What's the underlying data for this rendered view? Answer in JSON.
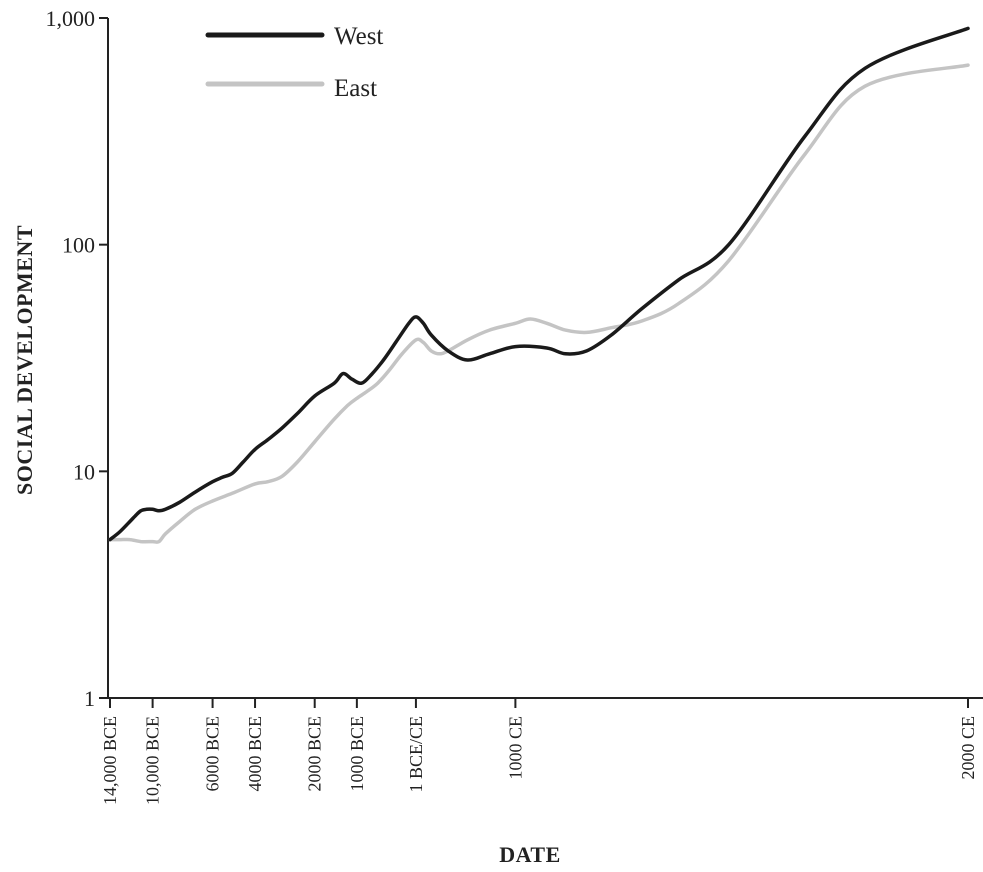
{
  "chart_data": {
    "type": "line",
    "title": "",
    "xlabel": "DATE",
    "ylabel": "SOCIAL DEVELOPMENT",
    "y_scale": "log",
    "ylim": [
      1,
      1000
    ],
    "y_ticks": [
      {
        "value": 1,
        "label": "1"
      },
      {
        "value": 10,
        "label": "10"
      },
      {
        "value": 100,
        "label": "100"
      },
      {
        "value": 1000,
        "label": "1,000"
      }
    ],
    "x_scale": "log of years before 2000 CE",
    "x_ticks": [
      {
        "year": -14000,
        "label": "14,000 BCE"
      },
      {
        "year": -10000,
        "label": "10,000 BCE"
      },
      {
        "year": -6000,
        "label": "6000 BCE"
      },
      {
        "year": -4000,
        "label": "4000 BCE"
      },
      {
        "year": -2000,
        "label": "2000 BCE"
      },
      {
        "year": -1000,
        "label": "1000 BCE"
      },
      {
        "year": 0,
        "label": "1 BCE/CE"
      },
      {
        "year": 1000,
        "label": "1000 CE"
      },
      {
        "year": 2000,
        "label": "2000 CE"
      }
    ],
    "legend_position": "top-left",
    "grid": false,
    "series": [
      {
        "name": "West",
        "color": "#1a1a1a",
        "points": [
          [
            -14000,
            5.0
          ],
          [
            -13000,
            5.4
          ],
          [
            -12000,
            6.0
          ],
          [
            -11500,
            6.35
          ],
          [
            -11000,
            6.7
          ],
          [
            -10500,
            6.8
          ],
          [
            -10000,
            6.8
          ],
          [
            -9500,
            6.7
          ],
          [
            -9000,
            6.8
          ],
          [
            -8000,
            7.3
          ],
          [
            -7000,
            8.1
          ],
          [
            -6000,
            9.0
          ],
          [
            -5500,
            9.4
          ],
          [
            -5000,
            9.8
          ],
          [
            -4500,
            11.0
          ],
          [
            -4000,
            12.5
          ],
          [
            -3500,
            13.8
          ],
          [
            -3000,
            15.5
          ],
          [
            -2500,
            18.0
          ],
          [
            -2000,
            21.5
          ],
          [
            -1500,
            24.5
          ],
          [
            -1300,
            27.0
          ],
          [
            -1100,
            25.5
          ],
          [
            -900,
            24.5
          ],
          [
            -700,
            27.0
          ],
          [
            -500,
            31.0
          ],
          [
            -300,
            37.0
          ],
          [
            -100,
            45.0
          ],
          [
            0,
            48.0
          ],
          [
            100,
            45.0
          ],
          [
            200,
            40.0
          ],
          [
            400,
            34.0
          ],
          [
            600,
            31.0
          ],
          [
            800,
            33.0
          ],
          [
            1000,
            35.5
          ],
          [
            1200,
            35.0
          ],
          [
            1300,
            33.0
          ],
          [
            1400,
            34.0
          ],
          [
            1500,
            40.0
          ],
          [
            1600,
            52.0
          ],
          [
            1700,
            70.0
          ],
          [
            1800,
            100.0
          ],
          [
            1900,
            300.0
          ],
          [
            1950,
            600.0
          ],
          [
            2000,
            900.0
          ]
        ]
      },
      {
        "name": "East",
        "color": "#c4c4c4",
        "points": [
          [
            -14000,
            5.0
          ],
          [
            -13000,
            5.0
          ],
          [
            -12000,
            5.0
          ],
          [
            -11000,
            4.9
          ],
          [
            -10000,
            4.9
          ],
          [
            -9500,
            4.9
          ],
          [
            -9000,
            5.3
          ],
          [
            -8000,
            6.0
          ],
          [
            -7000,
            6.8
          ],
          [
            -6000,
            7.4
          ],
          [
            -5000,
            8.0
          ],
          [
            -4000,
            8.8
          ],
          [
            -3500,
            9.0
          ],
          [
            -3000,
            9.5
          ],
          [
            -2500,
            11.0
          ],
          [
            -2000,
            13.5
          ],
          [
            -1500,
            17.0
          ],
          [
            -1200,
            19.5
          ],
          [
            -1000,
            21.0
          ],
          [
            -800,
            22.5
          ],
          [
            -600,
            24.5
          ],
          [
            -400,
            28.0
          ],
          [
            -200,
            33.0
          ],
          [
            0,
            38.0
          ],
          [
            100,
            37.0
          ],
          [
            200,
            34.0
          ],
          [
            300,
            33.0
          ],
          [
            400,
            34.0
          ],
          [
            600,
            38.0
          ],
          [
            800,
            42.0
          ],
          [
            1000,
            45.0
          ],
          [
            1100,
            47.0
          ],
          [
            1200,
            45.0
          ],
          [
            1300,
            42.0
          ],
          [
            1400,
            41.0
          ],
          [
            1500,
            43.0
          ],
          [
            1600,
            46.0
          ],
          [
            1700,
            55.0
          ],
          [
            1800,
            85.0
          ],
          [
            1900,
            250.0
          ],
          [
            1950,
            500.0
          ],
          [
            2000,
            620.0
          ]
        ]
      }
    ]
  }
}
